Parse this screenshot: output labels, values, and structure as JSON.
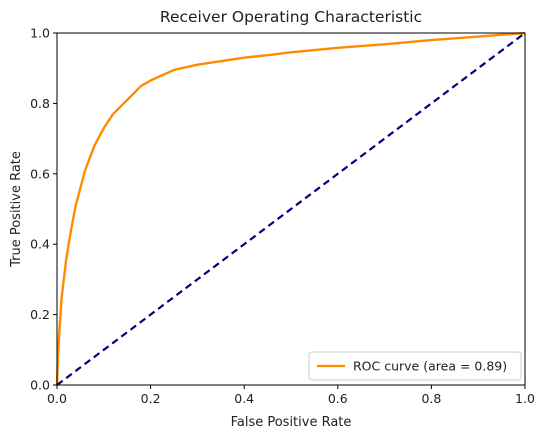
{
  "chart_data": {
    "type": "line",
    "title": "Receiver Operating Characteristic",
    "xlabel": "False Positive Rate",
    "ylabel": "True Positive Rate",
    "xlim": [
      0.0,
      1.0
    ],
    "ylim": [
      0.0,
      1.0
    ],
    "xticks": [
      "0.0",
      "0.2",
      "0.4",
      "0.6",
      "0.8",
      "1.0"
    ],
    "yticks": [
      "0.0",
      "0.2",
      "0.4",
      "0.6",
      "0.8",
      "1.0"
    ],
    "grid": false,
    "legend_position": "lower right",
    "series": [
      {
        "name": "ROC curve (area = 0.89)",
        "color": "#ff8c00",
        "style": "solid",
        "x": [
          0.0,
          0.002,
          0.005,
          0.01,
          0.02,
          0.03,
          0.04,
          0.05,
          0.06,
          0.08,
          0.1,
          0.12,
          0.15,
          0.18,
          0.2,
          0.25,
          0.3,
          0.35,
          0.4,
          0.45,
          0.5,
          0.6,
          0.7,
          0.8,
          0.9,
          1.0
        ],
        "y": [
          0.0,
          0.08,
          0.15,
          0.25,
          0.36,
          0.44,
          0.51,
          0.56,
          0.61,
          0.68,
          0.73,
          0.77,
          0.81,
          0.85,
          0.865,
          0.895,
          0.91,
          0.92,
          0.93,
          0.937,
          0.945,
          0.958,
          0.968,
          0.98,
          0.99,
          1.0
        ]
      },
      {
        "name": "",
        "color": "#000080",
        "style": "dashed",
        "x": [
          0.0,
          1.0
        ],
        "y": [
          0.0,
          1.0
        ]
      }
    ],
    "legend": [
      {
        "label": "ROC curve (area = 0.89)",
        "color": "#ff8c00"
      }
    ]
  }
}
